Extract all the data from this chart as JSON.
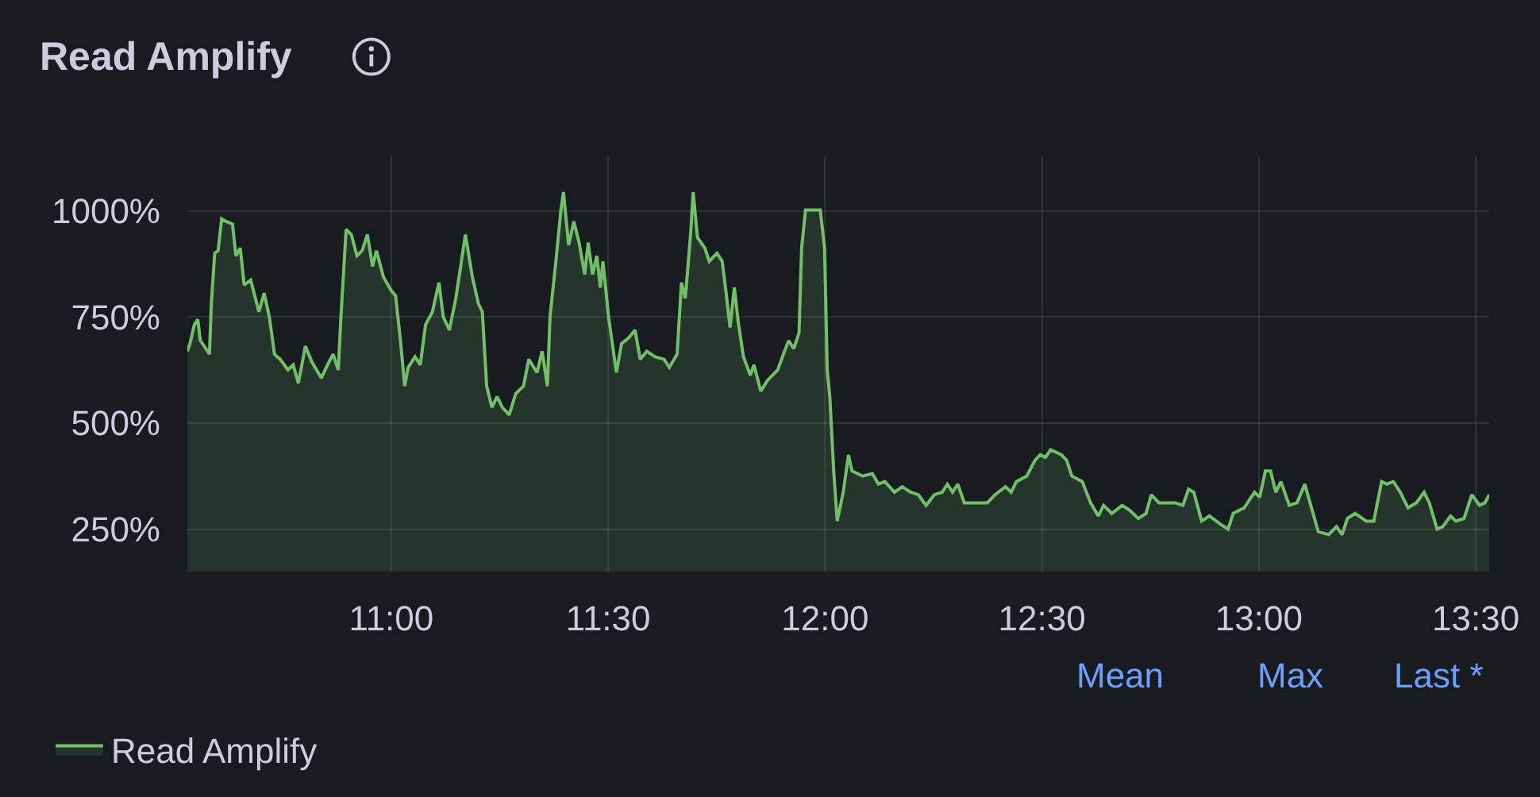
{
  "chart_data": {
    "type": "area",
    "title": "Read Amplify",
    "x": [
      10.53,
      10.536,
      10.546,
      10.554,
      10.56,
      10.573,
      10.581,
      10.585,
      10.593,
      10.601,
      10.609,
      10.619,
      10.634,
      10.642,
      10.652,
      10.661,
      10.676,
      10.695,
      10.707,
      10.719,
      10.731,
      10.744,
      10.762,
      10.774,
      10.786,
      10.802,
      10.817,
      10.839,
      10.853,
      10.866,
      10.878,
      10.884,
      10.896,
      10.908,
      10.921,
      10.933,
      10.945,
      10.957,
      10.966,
      10.982,
      11.0,
      11.01,
      11.022,
      11.031,
      11.039,
      11.055,
      11.067,
      11.079,
      11.095,
      11.11,
      11.12,
      11.134,
      11.149,
      11.171,
      11.187,
      11.201,
      11.21,
      11.22,
      11.232,
      11.244,
      11.256,
      11.272,
      11.287,
      11.305,
      11.317,
      11.336,
      11.348,
      11.36,
      11.366,
      11.379,
      11.391,
      11.397,
      11.409,
      11.421,
      11.433,
      11.446,
      11.454,
      11.464,
      11.474,
      11.482,
      11.488,
      11.501,
      11.519,
      11.531,
      11.547,
      11.562,
      11.574,
      11.589,
      11.608,
      11.629,
      11.641,
      11.659,
      11.669,
      11.678,
      11.69,
      11.696,
      11.706,
      11.723,
      11.733,
      11.751,
      11.763,
      11.772,
      11.781,
      11.791,
      11.8,
      11.812,
      11.828,
      11.836,
      11.852,
      11.867,
      11.891,
      11.904,
      11.916,
      11.928,
      11.94,
      11.946,
      11.955,
      11.989,
      11.999,
      12.005,
      12.011,
      12.02,
      12.028,
      12.042,
      12.054,
      12.062,
      12.087,
      12.109,
      12.123,
      12.138,
      12.16,
      12.178,
      12.197,
      12.215,
      12.233,
      12.252,
      12.27,
      12.282,
      12.294,
      12.306,
      12.321,
      12.343,
      12.374,
      12.392,
      12.416,
      12.429,
      12.441,
      12.465,
      12.484,
      12.496,
      12.508,
      12.52,
      12.545,
      12.557,
      12.569,
      12.593,
      12.612,
      12.63,
      12.642,
      12.661,
      12.685,
      12.703,
      12.722,
      12.74,
      12.752,
      12.77,
      12.807,
      12.825,
      12.838,
      12.85,
      12.868,
      12.886,
      12.911,
      12.929,
      12.941,
      12.966,
      12.99,
      13.002,
      13.015,
      13.027,
      13.039,
      13.051,
      13.07,
      13.088,
      13.106,
      13.118,
      13.137,
      13.161,
      13.179,
      13.192,
      13.204,
      13.222,
      13.247,
      13.265,
      13.283,
      13.295,
      13.31,
      13.326,
      13.344,
      13.363,
      13.381,
      13.393,
      13.411,
      13.424,
      13.442,
      13.454,
      13.473,
      13.491,
      13.509,
      13.521,
      13.531
    ],
    "series": [
      {
        "name": "Read Amplify",
        "color": "#73bf69",
        "values": [
          669,
          687,
          731,
          744,
          694,
          675,
          662,
          775,
          900,
          906,
          981,
          975,
          969,
          894,
          912,
          825,
          837,
          762,
          806,
          750,
          662,
          650,
          625,
          637,
          594,
          681,
          644,
          606,
          637,
          662,
          625,
          750,
          956,
          944,
          894,
          906,
          944,
          869,
          906,
          844,
          812,
          800,
          687,
          587,
          631,
          656,
          637,
          731,
          762,
          831,
          750,
          719,
          794,
          944,
          844,
          781,
          762,
          587,
          537,
          562,
          537,
          519,
          569,
          587,
          650,
          619,
          669,
          587,
          750,
          875,
          1000,
          1044,
          919,
          975,
          925,
          850,
          925,
          850,
          894,
          819,
          881,
          750,
          619,
          687,
          700,
          719,
          650,
          669,
          656,
          650,
          631,
          662,
          831,
          794,
          944,
          1044,
          937,
          912,
          881,
          900,
          881,
          806,
          725,
          819,
          737,
          656,
          612,
          637,
          575,
          600,
          625,
          662,
          694,
          675,
          712,
          912,
          1002,
          1002,
          912,
          625,
          562,
          387,
          269,
          337,
          425,
          387,
          375,
          381,
          356,
          362,
          337,
          350,
          337,
          331,
          306,
          331,
          337,
          356,
          337,
          356,
          312,
          312,
          312,
          331,
          350,
          337,
          362,
          375,
          412,
          425,
          419,
          437,
          425,
          412,
          375,
          362,
          312,
          281,
          306,
          287,
          306,
          294,
          275,
          287,
          331,
          312,
          312,
          306,
          344,
          337,
          269,
          281,
          262,
          250,
          287,
          300,
          337,
          325,
          387,
          387,
          337,
          362,
          306,
          312,
          356,
          312,
          244,
          237,
          256,
          237,
          275,
          287,
          269,
          269,
          362,
          356,
          362,
          337,
          300,
          312,
          337,
          312,
          250,
          256,
          281,
          269,
          275,
          331,
          306,
          312,
          331
        ]
      }
    ],
    "xlim": [
      10.53,
      13.531
    ],
    "xticks": [
      {
        "value": 11,
        "label": "11:00"
      },
      {
        "value": 11.5,
        "label": "11:30"
      },
      {
        "value": 12,
        "label": "12:00"
      },
      {
        "value": 12.5,
        "label": "12:30"
      },
      {
        "value": 13,
        "label": "13:00"
      },
      {
        "value": 13.5,
        "label": "13:30"
      }
    ],
    "ylim": [
      150,
      1130
    ],
    "yticks": [
      {
        "value": 250,
        "label": "250%"
      },
      {
        "value": 500,
        "label": "500%"
      },
      {
        "value": 750,
        "label": "750%"
      },
      {
        "value": 1000,
        "label": "1000%"
      }
    ],
    "grid": true,
    "legend": "bottom",
    "annotations": [
      "Mean",
      "Max",
      "Last *"
    ]
  }
}
